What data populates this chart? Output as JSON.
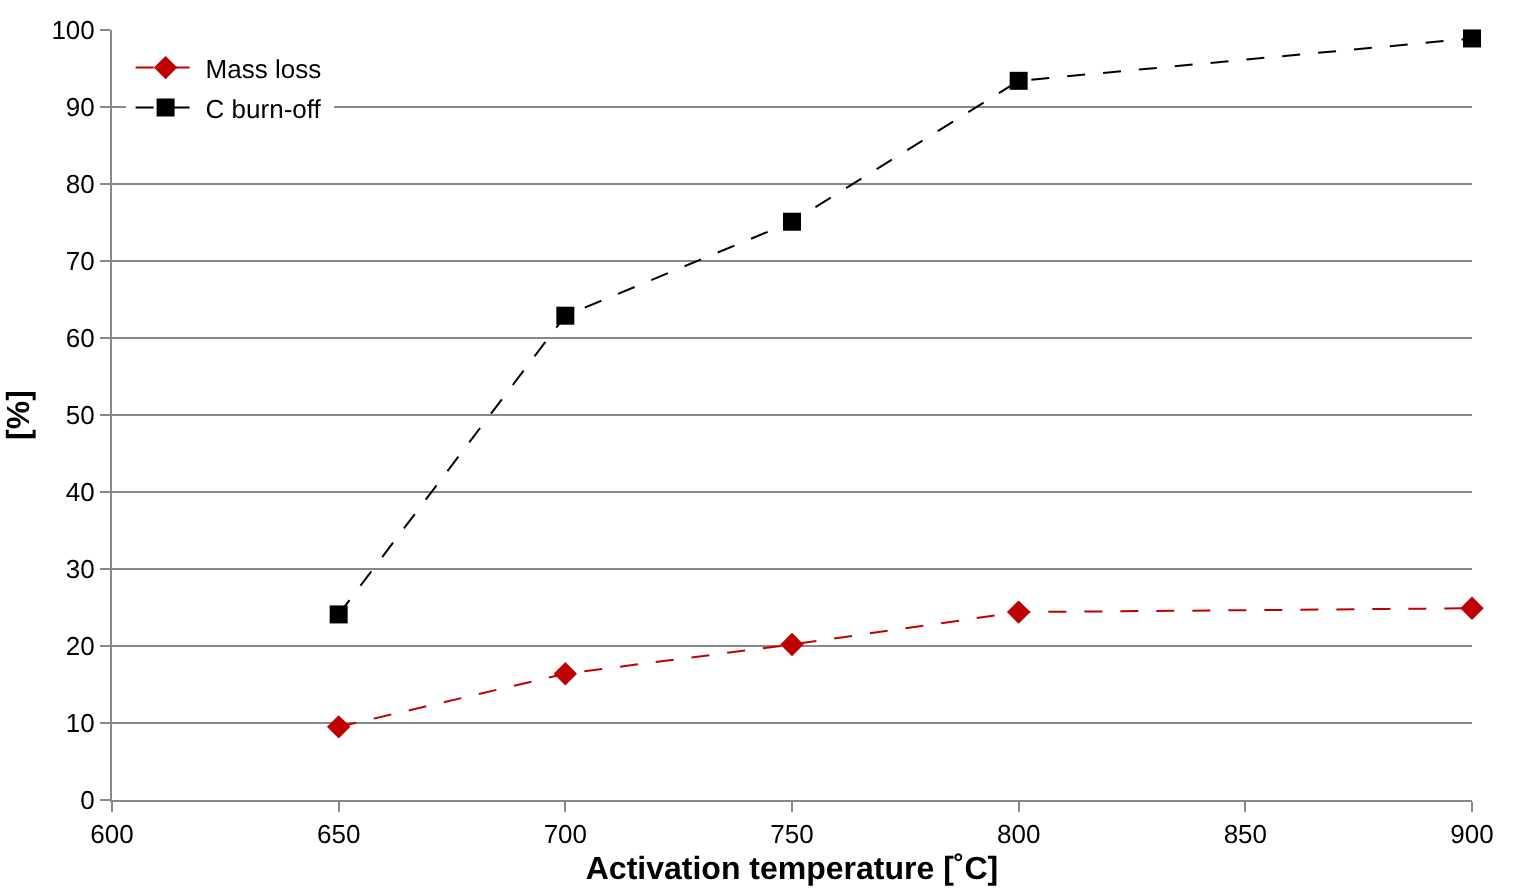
{
  "chart_data": {
    "type": "line",
    "xlabel": "Activation temperature [˚C]",
    "ylabel": "[%]",
    "x": [
      650,
      700,
      750,
      800,
      900
    ],
    "series": [
      {
        "name": "Mass loss",
        "color": "#c00000",
        "marker": "diamond",
        "values": [
          9.5,
          16.4,
          20.2,
          24.4,
          24.9
        ]
      },
      {
        "name": "C burn-off",
        "color": "#000000",
        "marker": "square",
        "values": [
          24.1,
          62.9,
          75.1,
          93.4,
          98.9
        ]
      }
    ],
    "xlim": [
      600,
      900
    ],
    "xticks": [
      600,
      650,
      700,
      750,
      800,
      850,
      900
    ],
    "ylim": [
      0,
      100
    ],
    "yticks": [
      0,
      10,
      20,
      30,
      40,
      50,
      60,
      70,
      80,
      90,
      100
    ],
    "grid": "y",
    "legend": "top left",
    "line_style": "dashed"
  }
}
